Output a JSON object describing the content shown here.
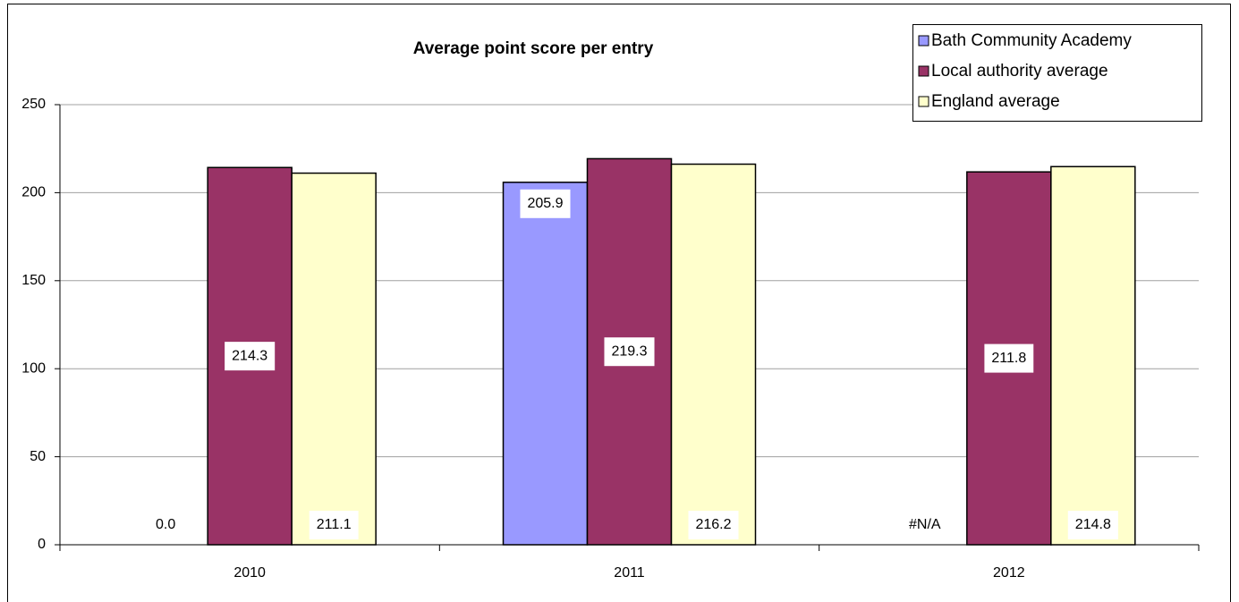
{
  "chart_data": {
    "type": "bar",
    "title": "Average point score per entry",
    "categories": [
      "2010",
      "2011",
      "2012"
    ],
    "series": [
      {
        "name": "Bath Community Academy",
        "color": "#9999ff",
        "values": [
          0,
          205.9,
          null
        ],
        "value_labels": [
          "0.0",
          "205.9",
          "#N/A"
        ]
      },
      {
        "name": "Local authority average",
        "color": "#993366",
        "values": [
          214.3,
          219.3,
          211.8
        ],
        "value_labels": [
          "214.3",
          "219.3",
          "211.8"
        ]
      },
      {
        "name": "England average",
        "color": "#ffffcc",
        "values": [
          211.1,
          216.2,
          214.8
        ],
        "value_labels": [
          "211.1",
          "216.2",
          "214.8"
        ]
      }
    ],
    "ylim": [
      0,
      250
    ],
    "yticks": [
      0,
      50,
      100,
      150,
      200,
      250
    ],
    "grid": true,
    "legend": "top-right"
  }
}
